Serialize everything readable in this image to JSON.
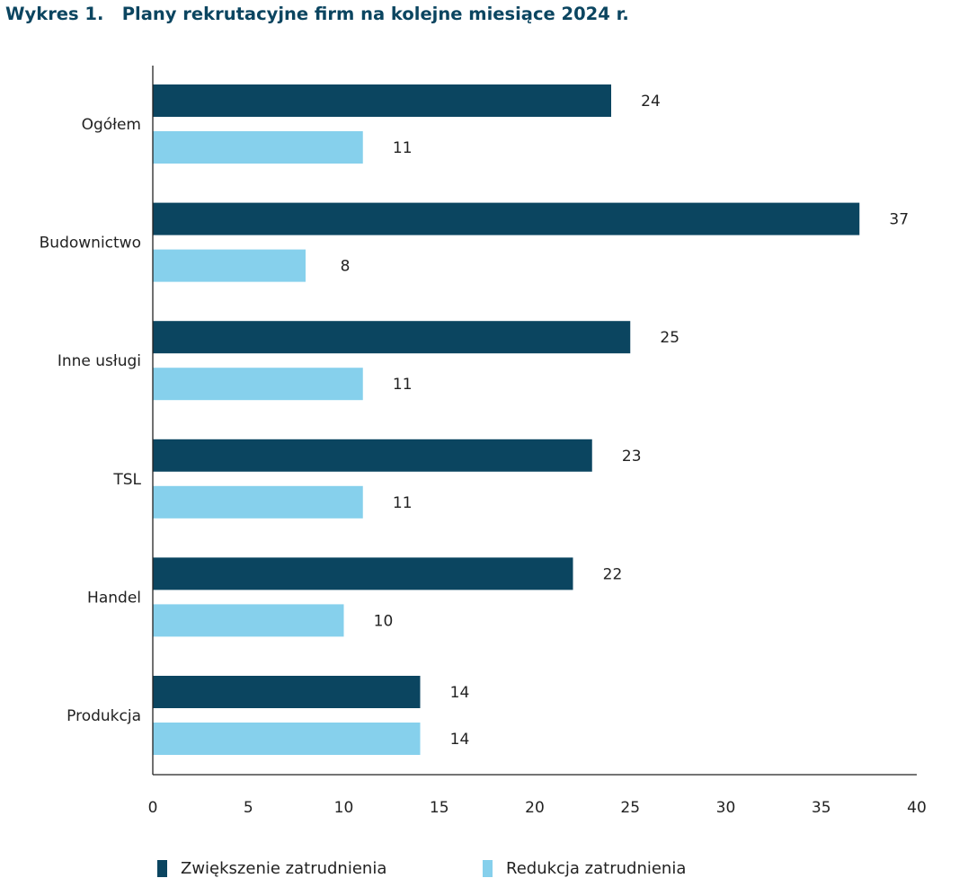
{
  "title": "Wykres 1.   Plany rekrutacyjne firm na kolejne miesiące 2024 r.",
  "chart_data": {
    "type": "bar",
    "orientation": "horizontal",
    "categories": [
      "Ogółem",
      "Budownictwo",
      "Inne usługi",
      "TSL",
      "Handel",
      "Produkcja"
    ],
    "series": [
      {
        "name": "Zwiększenie zatrudnienia",
        "color": "#0b4560",
        "values": [
          24,
          37,
          25,
          23,
          22,
          14
        ]
      },
      {
        "name": "Redukcja zatrudnienia",
        "color": "#86d0ec",
        "values": [
          11,
          8,
          11,
          11,
          10,
          14
        ]
      }
    ],
    "xlim": [
      0,
      40
    ],
    "xticks": [
      0,
      5,
      10,
      15,
      20,
      25,
      30,
      35,
      40
    ],
    "grid": false,
    "legend_position": "bottom"
  }
}
